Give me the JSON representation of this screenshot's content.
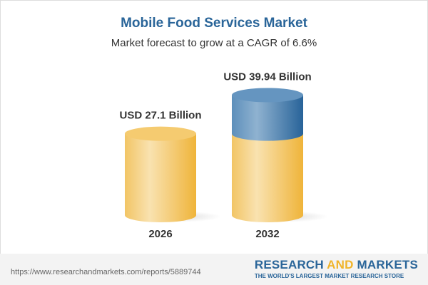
{
  "chart_data": {
    "type": "bar",
    "title": "Mobile Food Services Market",
    "subtitle": "Market forecast to grow at a CAGR of 6.6%",
    "categories": [
      "2026",
      "2032"
    ],
    "values": [
      27.1,
      39.94
    ],
    "data_labels": [
      "USD 27.1 Billion",
      "USD 39.94 Billion"
    ],
    "style": "3d-cylinder",
    "colors": {
      "base": "#f2c25a",
      "growth": "#3f7fb3",
      "title": "#2a6599"
    }
  },
  "footer": {
    "url": "https://www.researchandmarkets.com/reports/5889744",
    "logo_part1": "RESEARCH ",
    "logo_part2": "AND",
    "logo_part3": " MARKETS",
    "tagline": "THE WORLD'S LARGEST MARKET RESEARCH STORE"
  }
}
